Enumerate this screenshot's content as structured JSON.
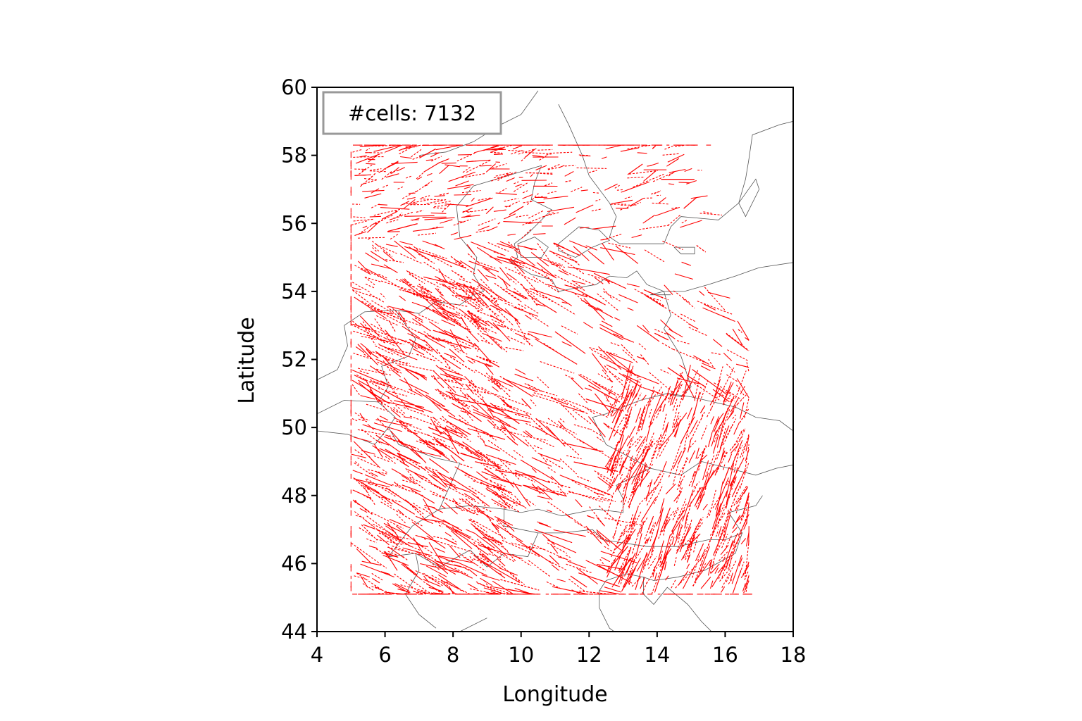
{
  "chart_data": {
    "type": "scatter",
    "title": "",
    "xlabel": "Longitude",
    "ylabel": "Latitude",
    "xlim": [
      4,
      18
    ],
    "ylim": [
      44,
      60
    ],
    "xticks": [
      "4",
      "6",
      "8",
      "10",
      "12",
      "14",
      "16",
      "18"
    ],
    "yticks": [
      "44",
      "46",
      "48",
      "50",
      "52",
      "54",
      "56",
      "58",
      "60"
    ],
    "annotation": "#cells: 7132",
    "grid": false,
    "series": [
      {
        "color": "#ff0000",
        "marker": "short track segments",
        "extent_lon": [
          5.0,
          16.7
        ],
        "extent_lat": [
          45.1,
          58.3
        ]
      }
    ],
    "background_map": {
      "features": [
        "coastlines",
        "country borders"
      ],
      "color": "#555555"
    }
  }
}
